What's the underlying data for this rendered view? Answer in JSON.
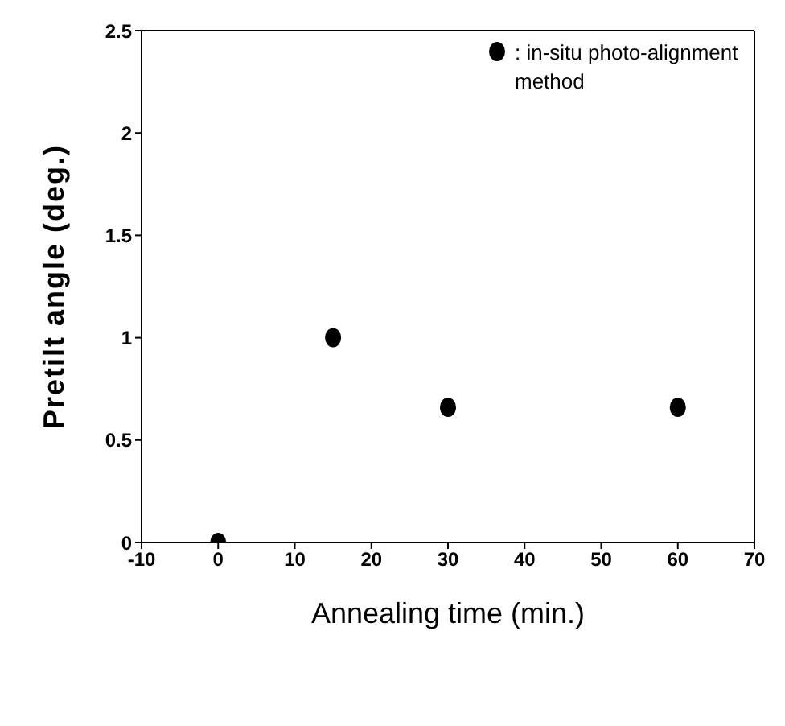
{
  "chart_data": {
    "type": "scatter",
    "xlabel": "Annealing time (min.)",
    "ylabel": "Pretilt angle (deg.)",
    "x": [
      0,
      15,
      30,
      60
    ],
    "series": [
      {
        "name": ": in-situ photo-alignment method",
        "color": "#000000",
        "values": [
          0,
          1.0,
          0.66,
          0.66
        ]
      }
    ],
    "xlim": [
      -10,
      70
    ],
    "xticks": [
      -10,
      0,
      10,
      20,
      30,
      40,
      50,
      60,
      70
    ],
    "ylim": [
      0,
      2.5
    ],
    "yticks": [
      0,
      0.5,
      1,
      1.5,
      2,
      2.5
    ],
    "marker": "circle",
    "legend": "top right",
    "grid": false
  }
}
